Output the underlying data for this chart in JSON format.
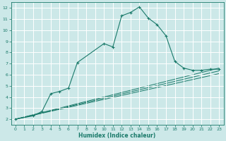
{
  "xlabel": "Humidex (Indice chaleur)",
  "ylabel": "",
  "background_color": "#cce8e8",
  "grid_color": "#ffffff",
  "line_color": "#1a7a6a",
  "xlim": [
    -0.5,
    23.5
  ],
  "ylim": [
    1.5,
    12.5
  ],
  "xticks": [
    0,
    1,
    2,
    3,
    4,
    5,
    6,
    7,
    8,
    9,
    10,
    11,
    12,
    13,
    14,
    15,
    16,
    17,
    18,
    19,
    20,
    21,
    22,
    23
  ],
  "yticks": [
    2,
    3,
    4,
    5,
    6,
    7,
    8,
    9,
    10,
    11,
    12
  ],
  "series": [
    [
      0,
      2
    ],
    [
      2,
      2.3
    ],
    [
      3,
      2.7
    ],
    [
      4,
      4.3
    ],
    [
      5,
      4.5
    ],
    [
      6,
      4.8
    ],
    [
      7,
      7.1
    ],
    [
      10,
      8.8
    ],
    [
      11,
      8.5
    ],
    [
      12,
      11.3
    ],
    [
      13,
      11.6
    ],
    [
      14,
      12.1
    ],
    [
      15,
      11.1
    ],
    [
      16,
      10.5
    ],
    [
      17,
      9.5
    ],
    [
      18,
      7.2
    ],
    [
      19,
      6.6
    ],
    [
      20,
      6.4
    ],
    [
      21,
      6.4
    ],
    [
      22,
      6.5
    ],
    [
      23,
      6.5
    ]
  ],
  "lines": [
    {
      "x0": 0,
      "y0": 2.0,
      "x1": 23,
      "y1": 6.6
    },
    {
      "x0": 0,
      "y0": 2.0,
      "x1": 23,
      "y1": 6.35
    },
    {
      "x0": 0,
      "y0": 2.0,
      "x1": 23,
      "y1": 6.1
    }
  ]
}
